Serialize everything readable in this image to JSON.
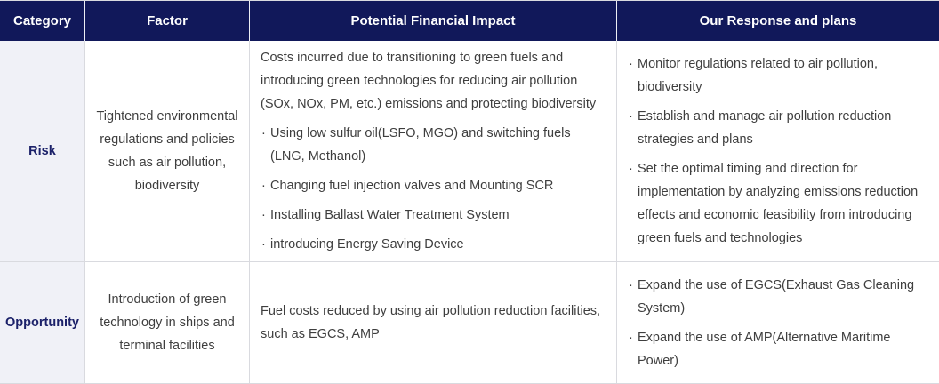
{
  "ui": {
    "bullet_char": "·"
  },
  "colors": {
    "header_bg": "#11185a",
    "header_text": "#ffffff",
    "category_bg": "#f0f1f7",
    "category_text": "#1b2169",
    "body_text": "#3e3e3e",
    "border": "#d9dadf"
  },
  "table": {
    "headers": [
      "Category",
      "Factor",
      "Potential Financial Impact",
      "Our Response and plans"
    ],
    "rows": [
      {
        "category": "Risk",
        "factor": "Tightened environmental regulations and policies such as air pollution, biodiversity",
        "impact_intro": "Costs incurred due to transitioning to green fuels and introducing green technologies for reducing air pollution (SOx, NOx, PM, etc.) emissions and protecting biodiversity",
        "impact_bullets": [
          "Using low sulfur oil(LSFO, MGO) and switching fuels (LNG, Methanol)",
          "Changing fuel injection valves and Mounting SCR",
          "Installing Ballast Water Treatment System",
          "introducing Energy Saving Device"
        ],
        "response_bullets": [
          "Monitor regulations related to air pollution, biodiversity",
          "Establish and manage air pollution reduction strategies and plans",
          "Set the optimal timing and direction for implementation by analyzing emissions reduction effects and economic feasibility from introducing green fuels and technologies"
        ]
      },
      {
        "category": "Opportunity",
        "factor": "Introduction of green technology in ships and terminal facilities",
        "impact_intro": "Fuel costs reduced by using air pollution reduction facilities, such as EGCS, AMP",
        "response_bullets": [
          "Expand the use of EGCS(Exhaust Gas Cleaning System)",
          "Expand the use of AMP(Alternative Maritime Power)"
        ]
      }
    ]
  }
}
